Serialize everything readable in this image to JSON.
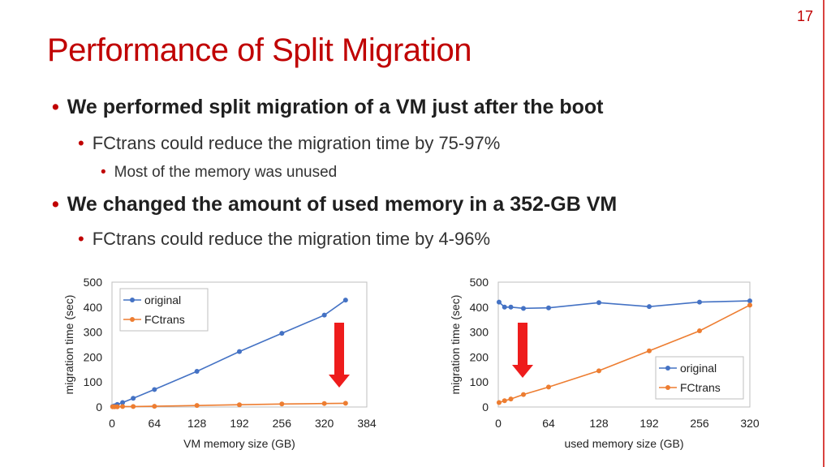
{
  "page_number": "17",
  "title": "Performance of Split Migration",
  "bullets": [
    {
      "level": 1,
      "text": "We performed split migration of a VM just after the boot"
    },
    {
      "level": 2,
      "text": "FCtrans could reduce the migration time by 75-97%"
    },
    {
      "level": 3,
      "text": "Most of the memory was unused"
    },
    {
      "level": 1,
      "text": "We changed the amount of used memory in a 352-GB VM"
    },
    {
      "level": 2,
      "text": "FCtrans could reduce the migration time by 4-96%"
    }
  ],
  "colors": {
    "title": "#c00000",
    "original": "#4472c4",
    "fctrans": "#ed7d31",
    "arrow": "#ee1c1c"
  },
  "chart_data": [
    {
      "type": "line",
      "xlabel": "VM memory size (GB)",
      "ylabel": "migration time (sec)",
      "xlim": [
        0,
        384
      ],
      "ylim": [
        0,
        500
      ],
      "xticks": [
        0,
        64,
        128,
        192,
        256,
        320,
        384
      ],
      "yticks": [
        0,
        100,
        200,
        300,
        400,
        500
      ],
      "legend": "top-left",
      "series": [
        {
          "name": "original",
          "x": [
            1,
            4,
            8,
            16,
            32,
            64,
            128,
            192,
            256,
            320,
            352
          ],
          "y": [
            2,
            5,
            10,
            18,
            35,
            70,
            143,
            222,
            295,
            368,
            428
          ]
        },
        {
          "name": "FCtrans",
          "x": [
            1,
            4,
            8,
            16,
            32,
            64,
            128,
            192,
            256,
            320,
            352
          ],
          "y": [
            1,
            1,
            1,
            2,
            2,
            3,
            6,
            9,
            12,
            14,
            15
          ]
        }
      ],
      "annotation": "down-arrow"
    },
    {
      "type": "line",
      "xlabel": "used memory size (GB)",
      "ylabel": "migration time (sec)",
      "xlim": [
        0,
        320
      ],
      "ylim": [
        0,
        500
      ],
      "xticks": [
        0,
        64,
        128,
        192,
        256,
        320
      ],
      "yticks": [
        0,
        100,
        200,
        300,
        400,
        500
      ],
      "legend": "bottom-right",
      "series": [
        {
          "name": "original",
          "x": [
            1,
            8,
            16,
            32,
            64,
            128,
            192,
            256,
            320
          ],
          "y": [
            420,
            400,
            400,
            395,
            397,
            418,
            402,
            420,
            425
          ]
        },
        {
          "name": "FCtrans",
          "x": [
            1,
            8,
            16,
            32,
            64,
            128,
            192,
            256,
            320
          ],
          "y": [
            18,
            25,
            32,
            50,
            80,
            145,
            225,
            305,
            408
          ]
        }
      ],
      "annotation": "down-arrow"
    }
  ]
}
